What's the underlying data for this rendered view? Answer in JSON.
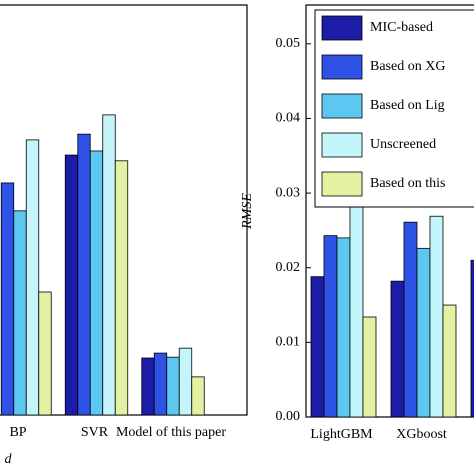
{
  "chart_data": [
    {
      "type": "bar",
      "x_label": "d",
      "categories": [
        "BP",
        "SVR",
        "Model of this paper"
      ],
      "series": [
        {
          "color": "#1c1ca8",
          "values": [
            null,
            0.634,
            0.139
          ]
        },
        {
          "color": "#2f52e6",
          "values": [
            0.566,
            0.685,
            0.151
          ]
        },
        {
          "color": "#5cc8f2",
          "values": [
            0.498,
            0.644,
            0.141
          ]
        },
        {
          "color": "#c4f5fb",
          "values": [
            0.671,
            0.732,
            0.163
          ]
        },
        {
          "color": "#e2f2a2",
          "values": [
            0.3,
            0.62,
            0.093
          ]
        }
      ],
      "ylim": [
        0,
        1
      ]
    },
    {
      "type": "bar",
      "y_label": "RMSE",
      "categories": [
        "LightGBM",
        "XGboost",
        null
      ],
      "series": [
        {
          "name": "MIC-based",
          "color": "#1c1ca8",
          "values": [
            0.0188,
            0.0182,
            0.021
          ]
        },
        {
          "name": "Based on XG",
          "color": "#2f52e6",
          "values": [
            0.0243,
            0.0261,
            null
          ]
        },
        {
          "name": "Based on Lig",
          "color": "#5cc8f2",
          "values": [
            0.024,
            0.0226,
            null
          ]
        },
        {
          "name": "Unscreened",
          "color": "#c4f5fb",
          "values": [
            0.0347,
            0.0269,
            null
          ]
        },
        {
          "name": "Based on this",
          "color": "#e2f2a2",
          "values": [
            0.0134,
            0.015,
            null
          ]
        }
      ],
      "ylim": [
        0,
        0.0552
      ],
      "yticks": [
        {
          "value": 0,
          "label": "0.00"
        },
        0.01,
        0.02,
        0.03,
        0.04,
        0.05
      ],
      "legend": "upper right"
    }
  ]
}
